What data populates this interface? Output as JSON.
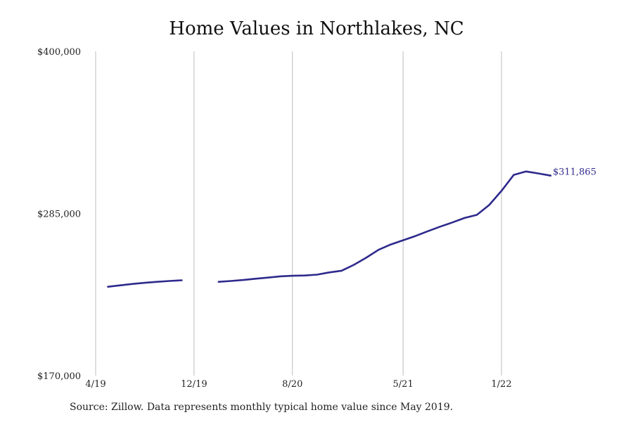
{
  "chart_data": {
    "type": "line",
    "title": "Home Values in Northlakes, NC",
    "xlabel": "",
    "ylabel": "",
    "ylim": [
      170000,
      400000
    ],
    "y_ticks": [
      {
        "value": 170000,
        "label": "$170,000"
      },
      {
        "value": 285000,
        "label": "$285,000"
      },
      {
        "value": 400000,
        "label": "$400,000"
      }
    ],
    "x_range": [
      "2019-04-01",
      "2022-06-01"
    ],
    "x_ticks": [
      {
        "date": "2019-04-01",
        "label": "4/19"
      },
      {
        "date": "2019-12-01",
        "label": "12/19"
      },
      {
        "date": "2020-08-01",
        "label": "8/20"
      },
      {
        "date": "2021-05-01",
        "label": "5/21"
      },
      {
        "date": "2022-01-01",
        "label": "1/22"
      }
    ],
    "grid": "vertical lines at x ticks",
    "series": [
      {
        "color": "#2e2a8c",
        "points": [
          {
            "date": "2019-05-01",
            "value": 233000
          },
          {
            "date": "2019-06-01",
            "value": 234000
          },
          {
            "date": "2019-07-01",
            "value": 235000
          },
          {
            "date": "2019-08-01",
            "value": 235800
          },
          {
            "date": "2019-09-01",
            "value": 236500
          },
          {
            "date": "2019-10-01",
            "value": 237100
          },
          {
            "date": "2019-11-01",
            "value": 237600
          },
          {
            "date": "2019-12-01",
            "value": null
          },
          {
            "date": "2020-01-01",
            "value": null
          },
          {
            "date": "2020-02-01",
            "value": 236500
          },
          {
            "date": "2020-03-01",
            "value": 237100
          },
          {
            "date": "2020-04-01",
            "value": 237800
          },
          {
            "date": "2020-05-01",
            "value": 238700
          },
          {
            "date": "2020-06-01",
            "value": 239500
          },
          {
            "date": "2020-07-01",
            "value": 240400
          },
          {
            "date": "2020-08-01",
            "value": 240800
          },
          {
            "date": "2020-09-01",
            "value": 241000
          },
          {
            "date": "2020-10-01",
            "value": 241600
          },
          {
            "date": "2020-11-01",
            "value": 243200
          },
          {
            "date": "2020-12-01",
            "value": 244400
          },
          {
            "date": "2021-01-01",
            "value": 248600
          },
          {
            "date": "2021-02-01",
            "value": 253600
          },
          {
            "date": "2021-03-01",
            "value": 259200
          },
          {
            "date": "2021-04-01",
            "value": 263000
          },
          {
            "date": "2021-05-01",
            "value": 266000
          },
          {
            "date": "2021-06-01",
            "value": 269000
          },
          {
            "date": "2021-07-01",
            "value": 272400
          },
          {
            "date": "2021-08-01",
            "value": 275600
          },
          {
            "date": "2021-09-01",
            "value": 278600
          },
          {
            "date": "2021-10-01",
            "value": 281800
          },
          {
            "date": "2021-11-01",
            "value": 284000
          },
          {
            "date": "2021-12-01",
            "value": 291000
          },
          {
            "date": "2022-01-01",
            "value": 301000
          },
          {
            "date": "2022-02-01",
            "value": 312400
          },
          {
            "date": "2022-03-01",
            "value": 314800
          },
          {
            "date": "2022-04-01",
            "value": 313400
          },
          {
            "date": "2022-05-01",
            "value": 311865
          }
        ]
      }
    ],
    "end_label": "$311,865",
    "source": "Source: Zillow. Data represents monthly typical home value since May 2019."
  },
  "colors": {
    "line": "#2e2a8c",
    "grid": "#bdbdbd",
    "text": "#222222"
  }
}
